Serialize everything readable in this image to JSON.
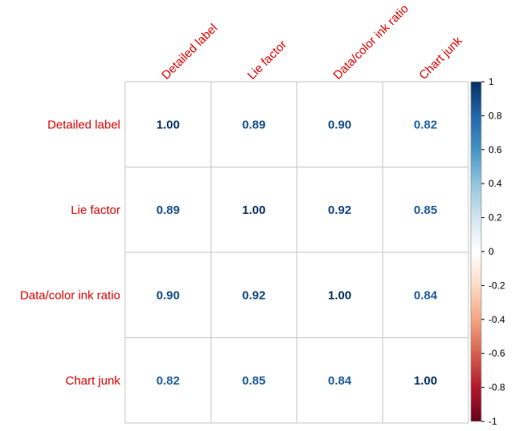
{
  "chart_data": {
    "type": "heatmap",
    "title": "",
    "row_labels": [
      "Detailed label",
      "Lie factor",
      "Data/color ink ratio",
      "Chart junk"
    ],
    "col_labels": [
      "Detailed label",
      "Lie factor",
      "Data/color ink ratio",
      "Chart junk"
    ],
    "values": [
      [
        1.0,
        0.89,
        0.9,
        0.82
      ],
      [
        0.89,
        1.0,
        0.92,
        0.85
      ],
      [
        0.9,
        0.92,
        1.0,
        0.84
      ],
      [
        0.82,
        0.85,
        0.84,
        1.0
      ]
    ],
    "value_labels": [
      [
        "1.00",
        "0.89",
        "0.90",
        "0.82"
      ],
      [
        "0.89",
        "1.00",
        "0.92",
        "0.85"
      ],
      [
        "0.90",
        "0.92",
        "1.00",
        "0.84"
      ],
      [
        "0.82",
        "0.85",
        "0.84",
        "1.00"
      ]
    ],
    "color_scale": {
      "range": [
        -1,
        1
      ],
      "ticks": [
        "1",
        "0.8",
        "0.6",
        "0.4",
        "0.2",
        "0",
        "-0.2",
        "-0.4",
        "-0.6",
        "-0.8",
        "-1"
      ],
      "tick_values": [
        1,
        0.8,
        0.6,
        0.4,
        0.2,
        0,
        -0.2,
        -0.4,
        -0.6,
        -0.8,
        -1
      ],
      "colors": [
        "#67001F",
        "#B2182B",
        "#D6604D",
        "#F4A582",
        "#FDDBC7",
        "#FFFFFF",
        "#D1E5F0",
        "#92C5DE",
        "#4393C3",
        "#2166AC",
        "#053061"
      ]
    },
    "label_color": "#E00000",
    "grid": true,
    "legend_position": "right"
  }
}
